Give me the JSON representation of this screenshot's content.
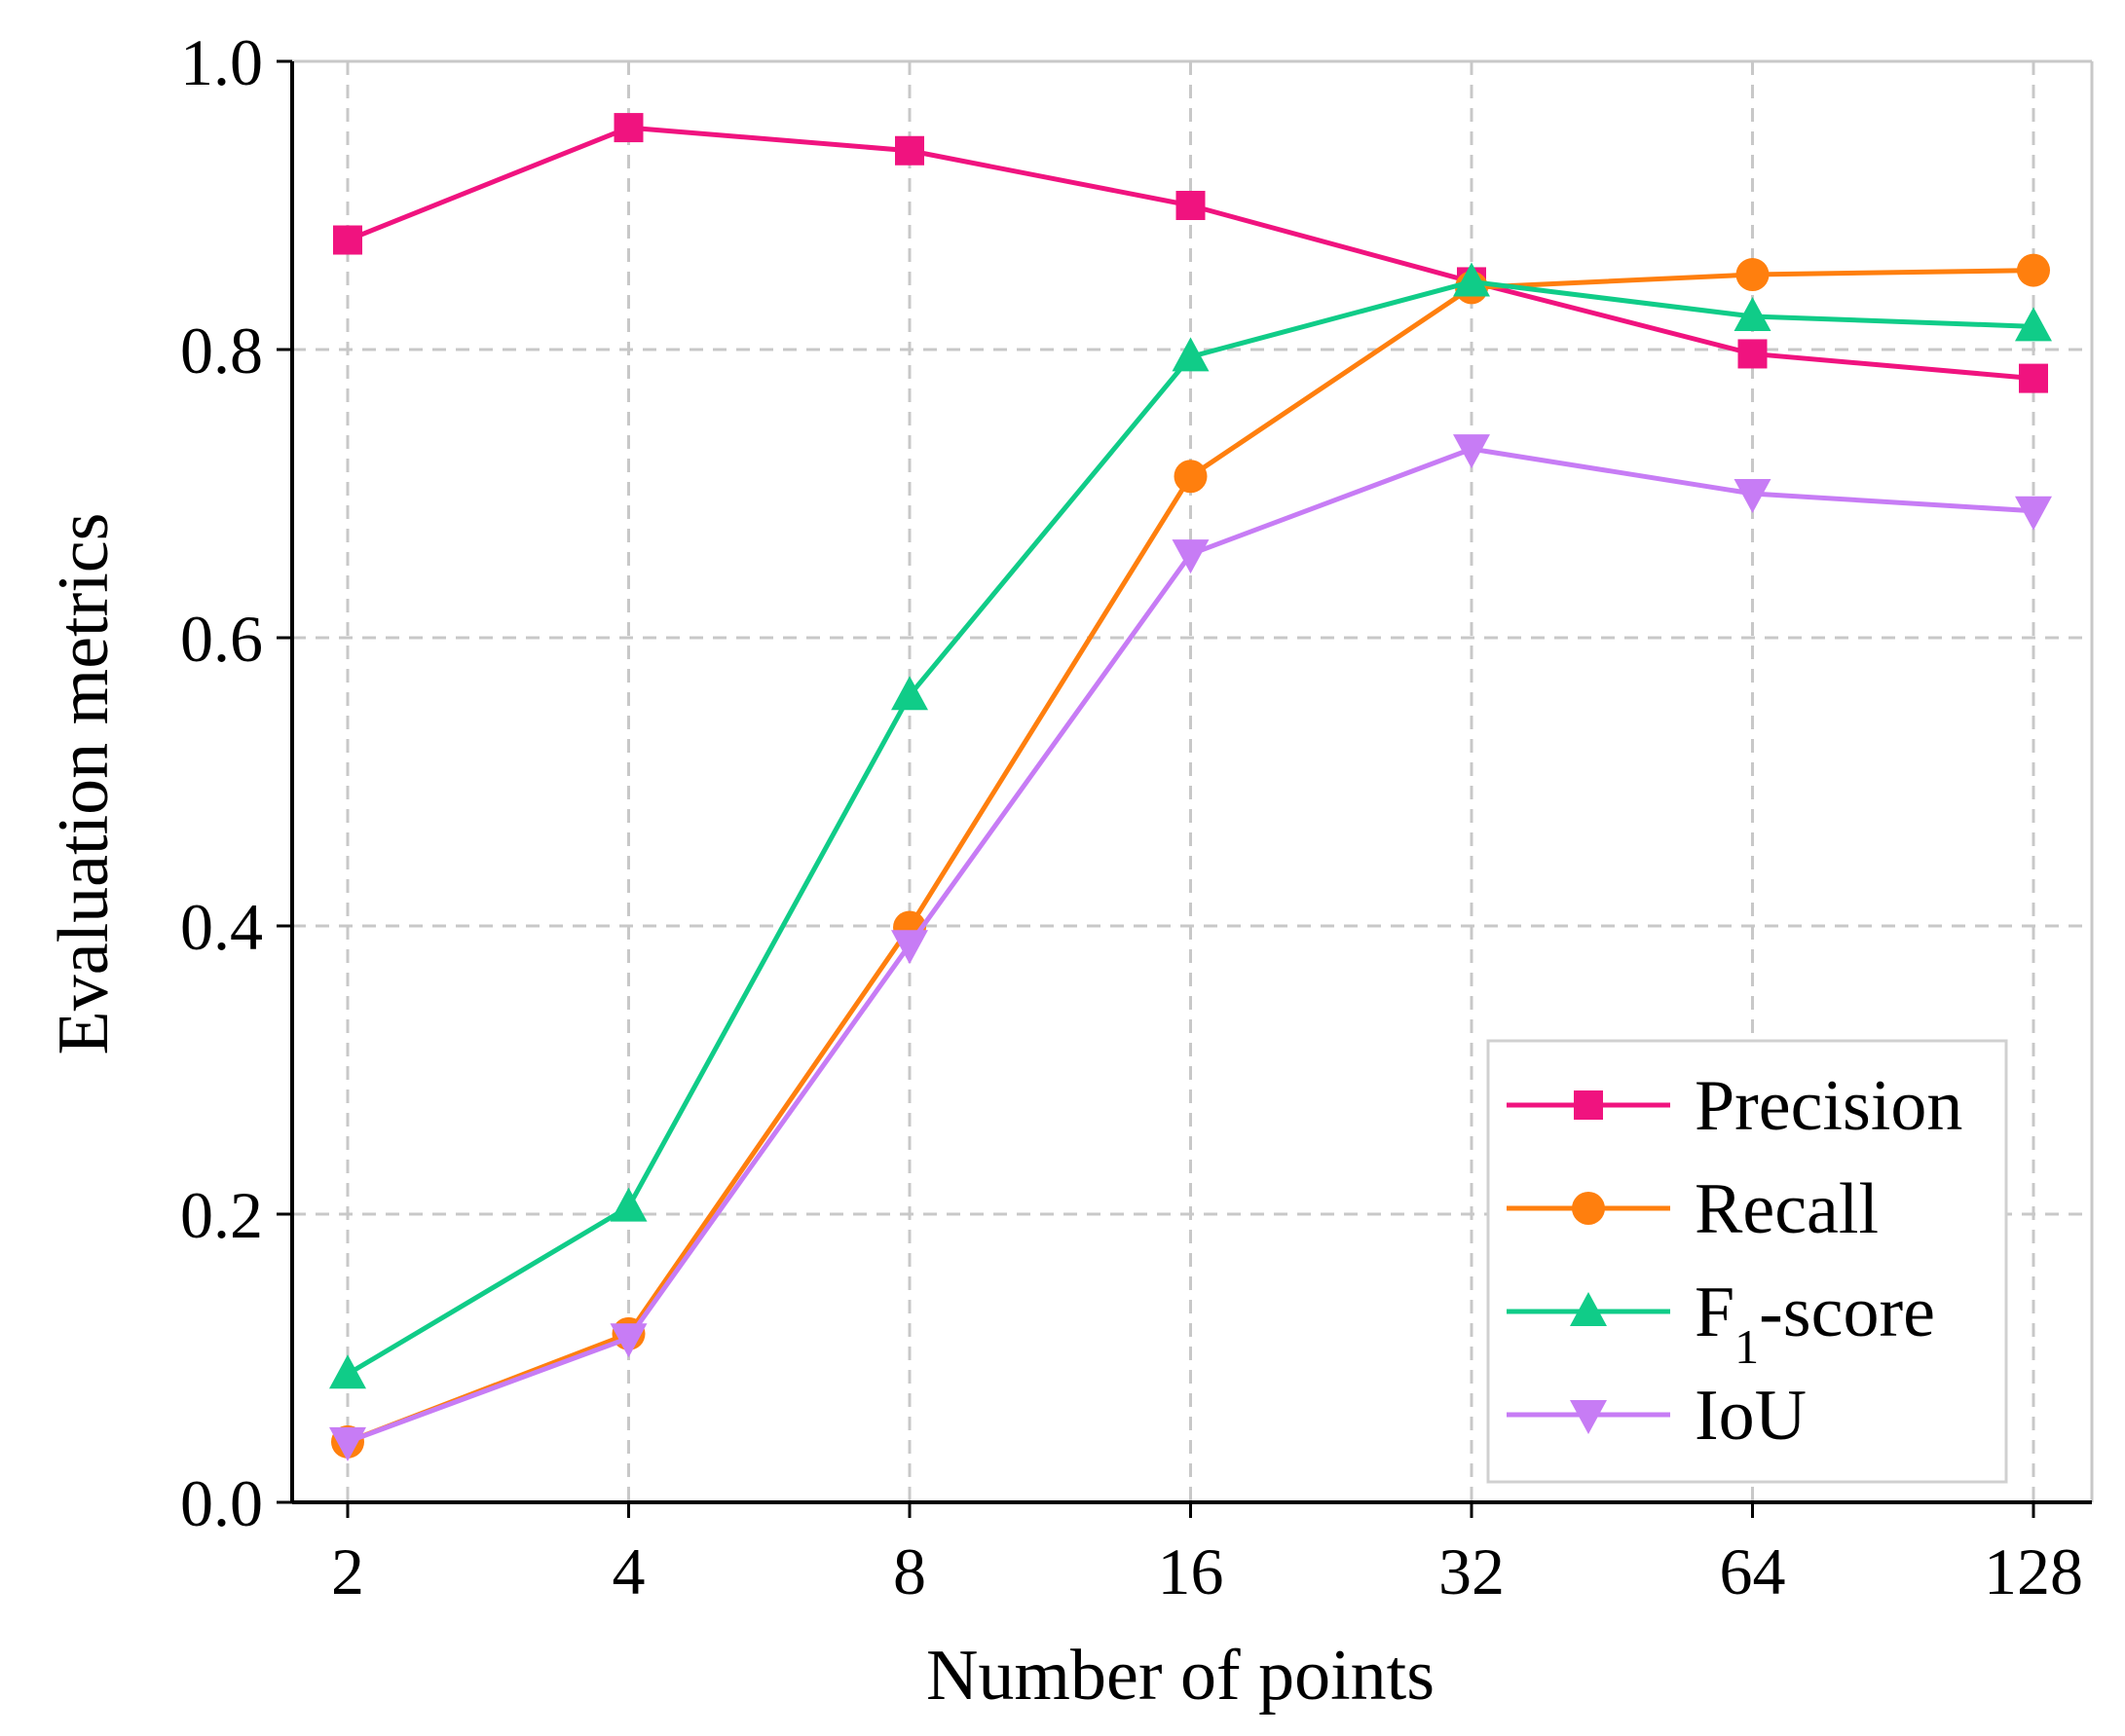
{
  "chart_data": {
    "type": "line",
    "title": "",
    "xlabel": "Number of points",
    "ylabel": "Evaluation metrics",
    "categories": [
      "2",
      "4",
      "8",
      "16",
      "32",
      "64",
      "128"
    ],
    "yticks": [
      "0.0",
      "0.2",
      "0.4",
      "0.6",
      "0.8",
      "1.0"
    ],
    "ylim": [
      0,
      1
    ],
    "grid": true,
    "legend_position": "bottom-right",
    "series": [
      {
        "name": "Precision",
        "color": "#f0137f",
        "marker": "square",
        "values": [
          0.876,
          0.954,
          0.938,
          0.9,
          0.847,
          0.797,
          0.78
        ]
      },
      {
        "name": "Recall",
        "color": "#ff7f0e",
        "marker": "circle",
        "values": [
          0.042,
          0.117,
          0.399,
          0.712,
          0.843,
          0.852,
          0.855
        ]
      },
      {
        "name": "F",
        "subscript": "1",
        "suffix": "-score",
        "color": "#10cc88",
        "marker": "triangle-up",
        "values": [
          0.089,
          0.205,
          0.56,
          0.795,
          0.847,
          0.823,
          0.816
        ]
      },
      {
        "name": "IoU",
        "color": "#c77cf5",
        "marker": "triangle-down",
        "values": [
          0.042,
          0.114,
          0.387,
          0.658,
          0.731,
          0.7,
          0.688
        ]
      }
    ]
  }
}
